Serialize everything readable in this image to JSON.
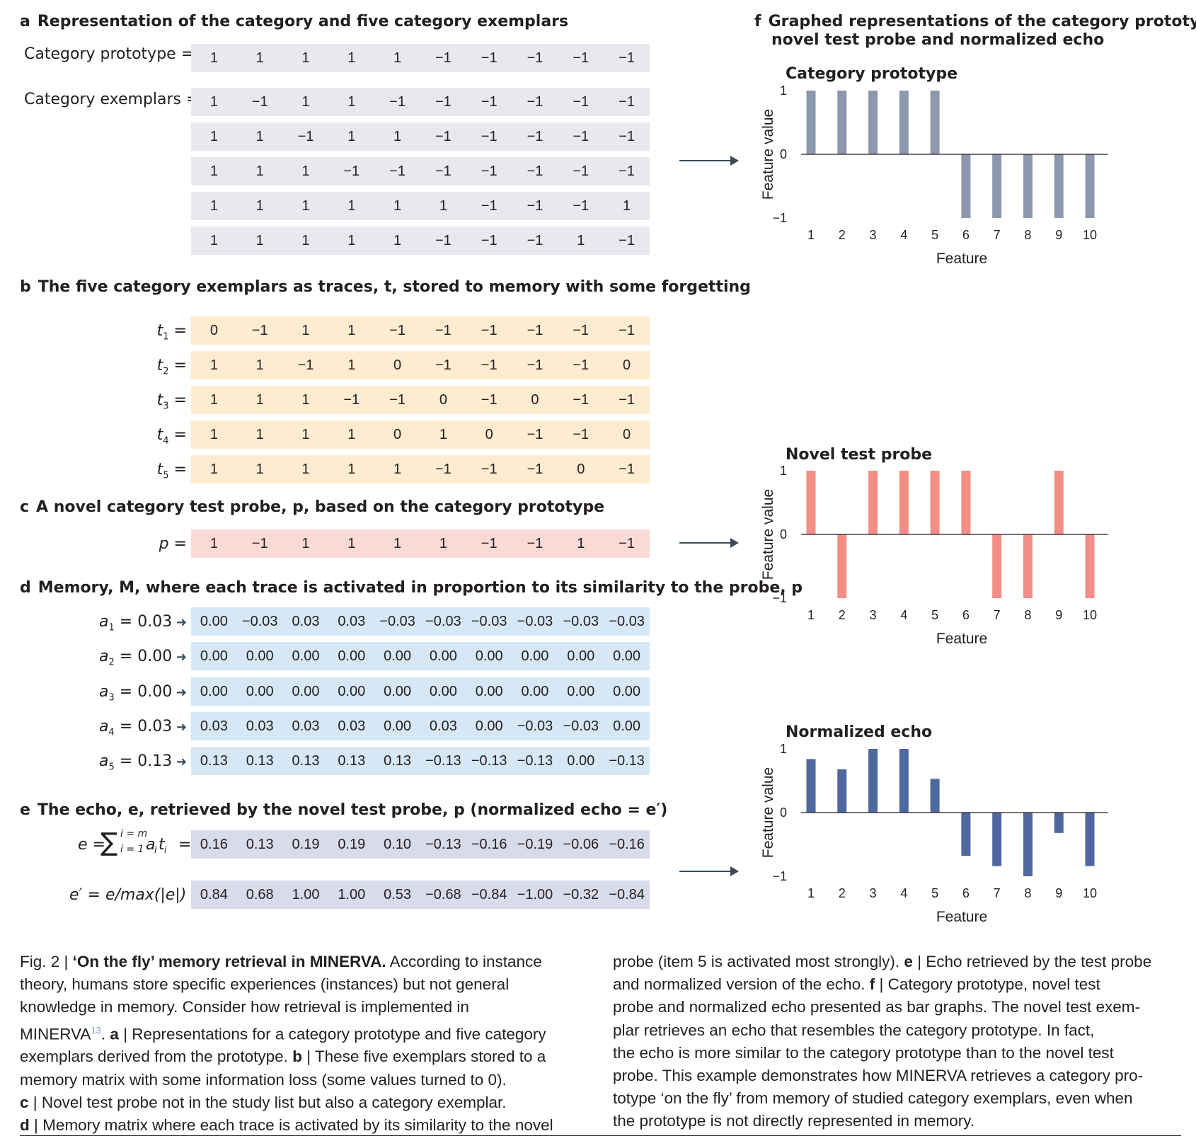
{
  "panel_a": {
    "letter": "a",
    "title": "Representation of the category and five category exemplars",
    "prototype_label": "Category prototype =",
    "prototype": [
      "1",
      "1",
      "1",
      "1",
      "1",
      "−1",
      "−1",
      "−1",
      "−1",
      "−1"
    ],
    "exemplars_label": "Category exemplars =",
    "exemplars": [
      [
        "1",
        "−1",
        "1",
        "1",
        "−1",
        "−1",
        "−1",
        "−1",
        "−1",
        "−1"
      ],
      [
        "1",
        "1",
        "−1",
        "1",
        "1",
        "−1",
        "−1",
        "−1",
        "−1",
        "−1"
      ],
      [
        "1",
        "1",
        "1",
        "−1",
        "−1",
        "−1",
        "−1",
        "−1",
        "−1",
        "−1"
      ],
      [
        "1",
        "1",
        "1",
        "1",
        "1",
        "1",
        "−1",
        "−1",
        "−1",
        "1"
      ],
      [
        "1",
        "1",
        "1",
        "1",
        "1",
        "−1",
        "−1",
        "−1",
        "1",
        "−1"
      ]
    ]
  },
  "panel_b": {
    "letter": "b",
    "title": "The five category exemplars as traces, t, stored to memory with some forgetting",
    "rows": [
      {
        "var": "t",
        "sub": "1",
        "eq": " =",
        "values": [
          "0",
          "−1",
          "1",
          "1",
          "−1",
          "−1",
          "−1",
          "−1",
          "−1",
          "−1"
        ]
      },
      {
        "var": "t",
        "sub": "2",
        "eq": " =",
        "values": [
          "1",
          "1",
          "−1",
          "1",
          "0",
          "−1",
          "−1",
          "−1",
          "−1",
          "0"
        ]
      },
      {
        "var": "t",
        "sub": "3",
        "eq": " =",
        "values": [
          "1",
          "1",
          "1",
          "−1",
          "−1",
          "0",
          "−1",
          "0",
          "−1",
          "−1"
        ]
      },
      {
        "var": "t",
        "sub": "4",
        "eq": " =",
        "values": [
          "1",
          "1",
          "1",
          "1",
          "0",
          "1",
          "0",
          "−1",
          "−1",
          "0"
        ]
      },
      {
        "var": "t",
        "sub": "5",
        "eq": " =",
        "values": [
          "1",
          "1",
          "1",
          "1",
          "1",
          "−1",
          "−1",
          "−1",
          "0",
          "−1"
        ]
      }
    ]
  },
  "panel_c": {
    "letter": "c",
    "title": "A novel category test probe, p, based on the category prototype",
    "label_var": "p",
    "label_eq": " =",
    "values": [
      "1",
      "−1",
      "1",
      "1",
      "1",
      "1",
      "−1",
      "−1",
      "1",
      "−1"
    ]
  },
  "panel_d": {
    "letter": "d",
    "title": "Memory, M, where each trace is activated in proportion to its similarity to the probe, p",
    "rows": [
      {
        "var": "a",
        "sub": "1",
        "eq": " = 0.03",
        "values": [
          "0.00",
          "−0.03",
          "0.03",
          "0.03",
          "−0.03",
          "−0.03",
          "−0.03",
          "−0.03",
          "−0.03",
          "−0.03"
        ]
      },
      {
        "var": "a",
        "sub": "2",
        "eq": " = 0.00",
        "values": [
          "0.00",
          "0.00",
          "0.00",
          "0.00",
          "0.00",
          "0.00",
          "0.00",
          "0.00",
          "0.00",
          "0.00"
        ]
      },
      {
        "var": "a",
        "sub": "3",
        "eq": " = 0.00",
        "values": [
          "0.00",
          "0.00",
          "0.00",
          "0.00",
          "0.00",
          "0.00",
          "0.00",
          "0.00",
          "0.00",
          "0.00"
        ]
      },
      {
        "var": "a",
        "sub": "4",
        "eq": " = 0.03",
        "values": [
          "0.03",
          "0.03",
          "0.03",
          "0.03",
          "0.00",
          "0.03",
          "0.00",
          "−0.03",
          "−0.03",
          "0.00"
        ]
      },
      {
        "var": "a",
        "sub": "5",
        "eq": " = 0.13",
        "values": [
          "0.13",
          "0.13",
          "0.13",
          "0.13",
          "0.13",
          "−0.13",
          "−0.13",
          "−0.13",
          "0.00",
          "−0.13"
        ]
      }
    ]
  },
  "panel_e": {
    "letter": "e",
    "title": "The echo, e, retrieved by the novel test probe, p (normalized echo = e′)",
    "echo_label": {
      "lhs": "e =",
      "sum_top": "i = m",
      "sum_bottom": "i = 1",
      "term_a": "a",
      "term_t": "t",
      "sub": "i",
      "eq": "="
    },
    "echo": [
      "0.16",
      "0.13",
      "0.19",
      "0.19",
      "0.10",
      "−0.13",
      "−0.16",
      "−0.19",
      "−0.06",
      "−0.16"
    ],
    "norm_label": "e′ =  e/max(|e|) =",
    "normalized": [
      "0.84",
      "0.68",
      "1.00",
      "1.00",
      "0.53",
      "−0.68",
      "−0.84",
      "−1.00",
      "−0.32",
      "−0.84"
    ]
  },
  "panel_f": {
    "letter": "f",
    "title_line1": "Graphed representations of the category prototype,",
    "title_line2": "novel test probe and normalized echo"
  },
  "chart_data": [
    {
      "type": "bar",
      "title": "Category prototype",
      "xlabel": "Feature",
      "ylabel": "Feature value",
      "categories": [
        "1",
        "2",
        "3",
        "4",
        "5",
        "6",
        "7",
        "8",
        "9",
        "10"
      ],
      "values": [
        1,
        1,
        1,
        1,
        1,
        -1,
        -1,
        -1,
        -1,
        -1
      ],
      "ylim": [
        -1,
        1
      ],
      "yticks": [
        "1",
        "0",
        "−1"
      ],
      "color": "#8d98ae"
    },
    {
      "type": "bar",
      "title": "Novel test probe",
      "xlabel": "Feature",
      "ylabel": "Feature value",
      "categories": [
        "1",
        "2",
        "3",
        "4",
        "5",
        "6",
        "7",
        "8",
        "9",
        "10"
      ],
      "values": [
        1,
        -1,
        1,
        1,
        1,
        1,
        -1,
        -1,
        1,
        -1
      ],
      "ylim": [
        -1,
        1
      ],
      "yticks": [
        "1",
        "0",
        "−1"
      ],
      "color": "#f28e86"
    },
    {
      "type": "bar",
      "title": "Normalized echo",
      "xlabel": "Feature",
      "ylabel": "Feature value",
      "categories": [
        "1",
        "2",
        "3",
        "4",
        "5",
        "6",
        "7",
        "8",
        "9",
        "10"
      ],
      "values": [
        0.84,
        0.68,
        1.0,
        1.0,
        0.53,
        -0.68,
        -0.84,
        -1.0,
        -0.32,
        -0.84
      ],
      "ylim": [
        -1,
        1
      ],
      "yticks": [
        "1",
        "0",
        "−1"
      ],
      "color": "#4f689d"
    }
  ],
  "caption": {
    "left": [
      [
        {
          "t": "Fig. 2 | "
        },
        {
          "t": "‘On the fly’ memory retrieval in MINERVA.",
          "b": true
        },
        {
          "t": " According to instance"
        }
      ],
      [
        {
          "t": "theory, humans store specific experiences (instances) but not general"
        }
      ],
      [
        {
          "t": "knowledge in memory. Consider how retrieval is implemented in"
        }
      ],
      [
        {
          "t": "MINERVA"
        },
        {
          "t": "13",
          "sup": true
        },
        {
          "t": ". "
        },
        {
          "t": "a",
          "b": true
        },
        {
          "t": " | Representations for a category prototype and five category"
        }
      ],
      [
        {
          "t": "exemplars derived from the prototype. "
        },
        {
          "t": "b",
          "b": true
        },
        {
          "t": " | These five exemplars stored to a"
        }
      ],
      [
        {
          "t": "memory matrix with some information loss (some values turned to 0)."
        }
      ],
      [
        {
          "t": "c",
          "b": true
        },
        {
          "t": " | Novel test probe not in the study list but also a category exemplar."
        }
      ],
      [
        {
          "t": "d",
          "b": true
        },
        {
          "t": " | Memory matrix where each trace is activated by its similarity to the novel"
        }
      ]
    ],
    "right": [
      [
        {
          "t": "probe (item 5 is activated most strongly). "
        },
        {
          "t": "e",
          "b": true
        },
        {
          "t": " | Echo retrieved by the test probe"
        }
      ],
      [
        {
          "t": "and normalized version of the echo. "
        },
        {
          "t": "f",
          "b": true
        },
        {
          "t": " | Category prototype, novel test"
        }
      ],
      [
        {
          "t": "probe and normalized echo presented as bar graphs. The novel test exem-"
        }
      ],
      [
        {
          "t": "plar retrieves an echo that resembles the category prototype. In fact,"
        }
      ],
      [
        {
          "t": "the echo is more similar to the category prototype than to the novel test"
        }
      ],
      [
        {
          "t": "probe. This example demonstrates how MINERVA retrieves a category pro-"
        }
      ],
      [
        {
          "t": "totype ‘on the fly’ from memory of studied category exemplars, even when"
        }
      ],
      [
        {
          "t": "the prototype is not directly represented in memory."
        }
      ]
    ]
  },
  "colors": {
    "grey": "#e8e9ee",
    "peach": "#fdecd0",
    "pink": "#fbdad6",
    "blue": "#d6e8f5",
    "lavender": "#d9dbea",
    "arrow": "#3c4a57"
  }
}
